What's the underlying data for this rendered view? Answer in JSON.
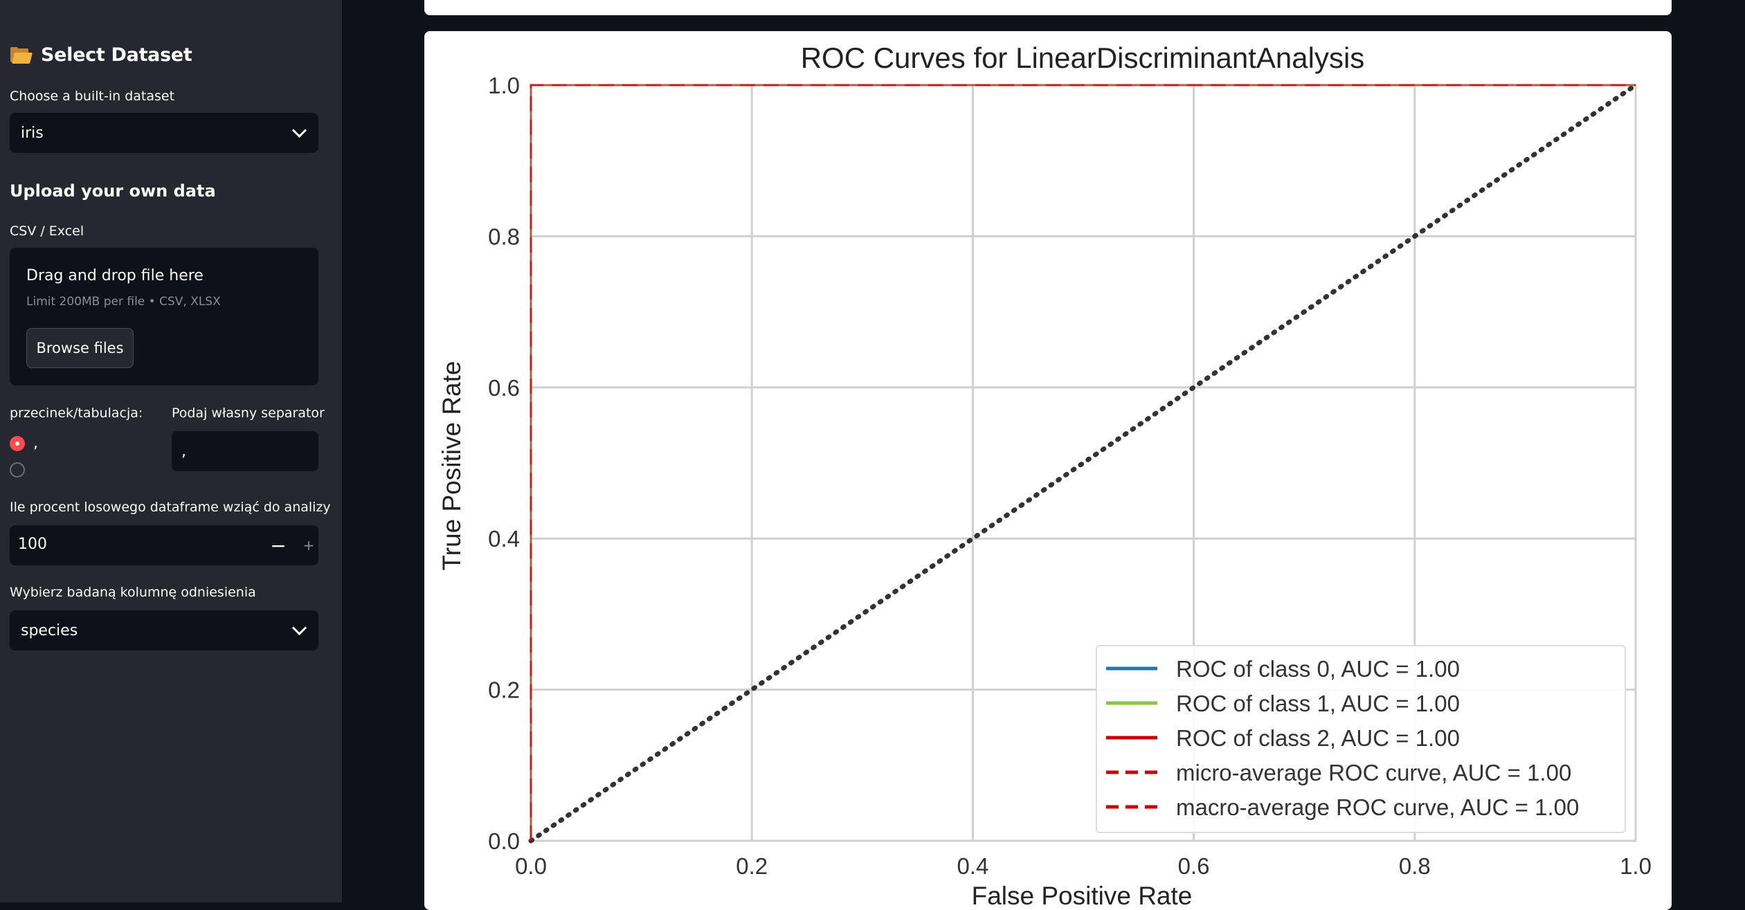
{
  "sidebar": {
    "header_title": "Select Dataset",
    "dataset_label": "Choose a built-in dataset",
    "dataset_value": "iris",
    "upload_title": "Upload your own data",
    "upload_label": "CSV / Excel",
    "drag_text": "Drag and drop file here",
    "limit_text": "Limit 200MB per file • CSV, XLSX",
    "browse_label": "Browse files",
    "separator_label": "przecinek/tabulacja:",
    "radio_option_1": ",",
    "radio_option_2": "",
    "custom_sep_label": "Podaj własny separator",
    "custom_sep_value": ",",
    "percent_label": "Ile procent losowego dataframe wziąć do analizy",
    "percent_value": "100",
    "minus": "−",
    "plus": "+",
    "target_label": "Wybierz badaną kolumnę odniesienia",
    "target_value": "species"
  },
  "chart_data": {
    "type": "line",
    "title": "ROC Curves for LinearDiscriminantAnalysis",
    "xlabel": "False Positive Rate",
    "ylabel": "True Positive Rate",
    "xlim": [
      0,
      1
    ],
    "ylim": [
      0,
      1
    ],
    "xticks": [
      "0.0",
      "0.2",
      "0.4",
      "0.6",
      "0.8",
      "1.0"
    ],
    "yticks": [
      "0.0",
      "0.2",
      "0.4",
      "0.6",
      "0.8",
      "1.0"
    ],
    "grid": true,
    "legend_position": "lower-right",
    "series": [
      {
        "name": "ROC of class 0, AUC = 1.00",
        "color": "#1f77b4",
        "style": "solid",
        "x": [
          0,
          0,
          1
        ],
        "y": [
          0,
          1,
          1
        ]
      },
      {
        "name": "ROC of class 1, AUC = 1.00",
        "color": "#8bc34a",
        "style": "solid",
        "x": [
          0,
          0,
          1
        ],
        "y": [
          0,
          1,
          1
        ]
      },
      {
        "name": "ROC of class 2, AUC = 1.00",
        "color": "#cc0000",
        "style": "solid",
        "x": [
          0,
          0,
          1
        ],
        "y": [
          0,
          1,
          1
        ]
      },
      {
        "name": "micro-average ROC curve, AUC = 1.00",
        "color": "#cc0000",
        "style": "dashed",
        "x": [
          0,
          0,
          1
        ],
        "y": [
          0,
          1,
          1
        ]
      },
      {
        "name": "macro-average ROC curve, AUC = 1.00",
        "color": "#cc0000",
        "style": "dashed",
        "x": [
          0,
          0,
          1
        ],
        "y": [
          0,
          1,
          1
        ]
      }
    ],
    "diagonal": {
      "x": [
        0,
        1
      ],
      "y": [
        0,
        1
      ],
      "color": "#333333",
      "style": "dotted"
    }
  }
}
